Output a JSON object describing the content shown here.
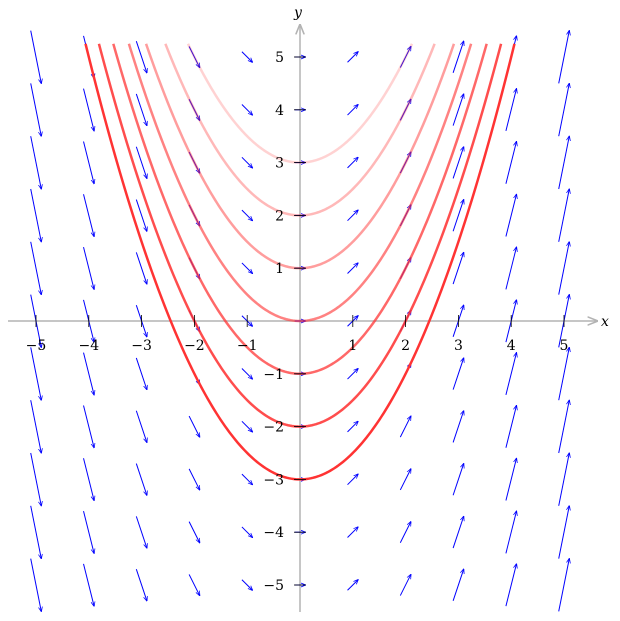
{
  "chart_data": {
    "type": "line",
    "subtype": "slope-field",
    "title": "",
    "xlabel": "x",
    "ylabel": "y",
    "xlim": [
      -5.5,
      5.7
    ],
    "ylim": [
      -5.5,
      5.5
    ],
    "grid": false,
    "xticks": [
      -5,
      -4,
      -3,
      -2,
      -1,
      1,
      2,
      3,
      4,
      5
    ],
    "yticks": [
      -5,
      -4,
      -3,
      -2,
      -1,
      1,
      2,
      3,
      4,
      5
    ],
    "xtick_labels": [
      "−5",
      "−4",
      "−3",
      "−2",
      "−1",
      "1",
      "2",
      "3",
      "4",
      "5"
    ],
    "ytick_labels": [
      "−5",
      "−4",
      "−3",
      "−2",
      "−1",
      "1",
      "2",
      "3",
      "4",
      "5"
    ],
    "slope_field": {
      "equation": "dy/dx = x",
      "grid_x": [
        -5,
        -4,
        -3,
        -2,
        -1,
        0,
        1,
        2,
        3,
        4,
        5
      ],
      "grid_y": [
        -5,
        -4,
        -3,
        -2,
        -1,
        0,
        1,
        2,
        3,
        4,
        5
      ],
      "color": "#0000ff"
    },
    "series": [
      {
        "function": "y = x^2/2 - 3",
        "C": -3,
        "color": "#ff3333",
        "opacity": 1.0
      },
      {
        "function": "y = x^2/2 - 2",
        "C": -2,
        "color": "#ff3333",
        "opacity": 0.87
      },
      {
        "function": "y = x^2/2 - 1",
        "C": -1,
        "color": "#ff3333",
        "opacity": 0.74
      },
      {
        "function": "y = x^2/2",
        "C": 0,
        "color": "#ff3333",
        "opacity": 0.61
      },
      {
        "function": "y = x^2/2 + 1",
        "C": 1,
        "color": "#ff3333",
        "opacity": 0.48
      },
      {
        "function": "y = x^2/2 + 2",
        "C": 2,
        "color": "#ff3333",
        "opacity": 0.35
      },
      {
        "function": "y = x^2/2 + 3",
        "C": 3,
        "color": "#ff3333",
        "opacity": 0.22
      }
    ],
    "curve_y_max": 5.25,
    "axis_color": "#b3b3b3"
  }
}
